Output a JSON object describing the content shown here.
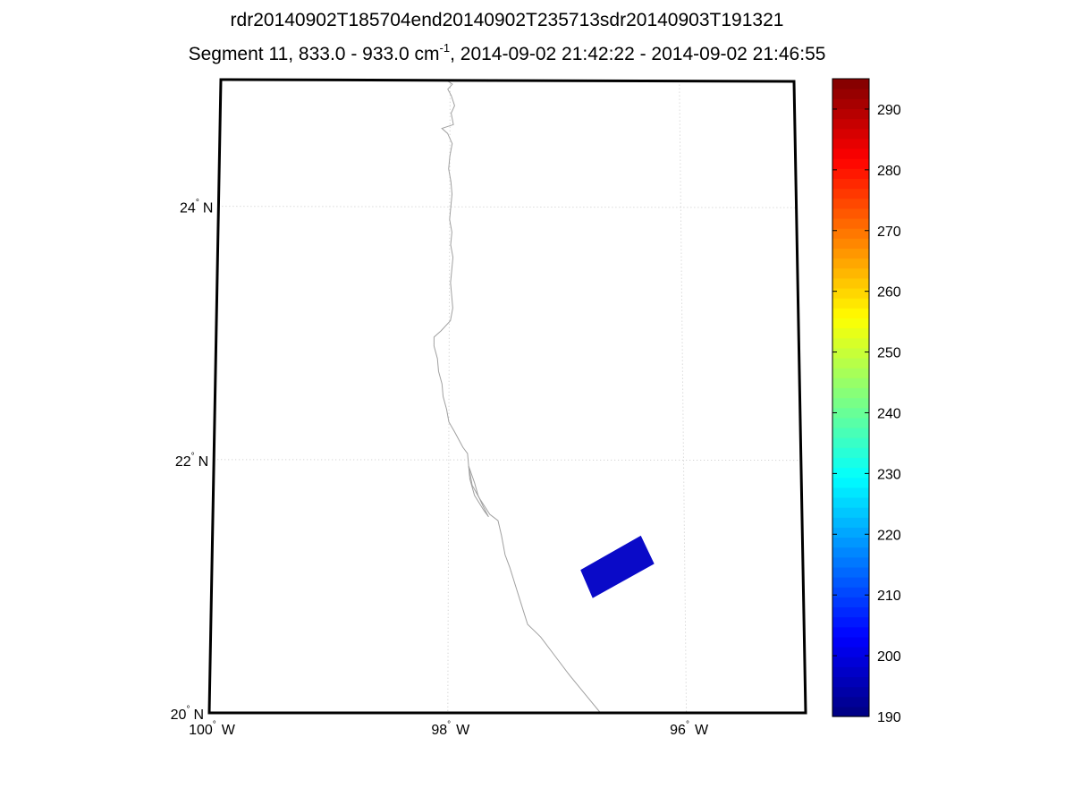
{
  "title": {
    "line1": "rdr20140902T185704end20140902T235713sdr20140903T191321",
    "line2_prefix": "Segment 11, 833.0 - 933.0 cm",
    "line2_superscript": "-1",
    "line2_suffix": ", 2014-09-02 21:42:22 - 2014-09-02 21:46:55"
  },
  "map": {
    "lat_range": [
      20,
      25
    ],
    "lon_range": [
      -100,
      -95
    ],
    "grid": true,
    "lat_ticks": [
      {
        "value": 24,
        "deg": "24",
        "hemi": "N"
      },
      {
        "value": 22,
        "deg": "22",
        "hemi": "N"
      },
      {
        "value": 20,
        "deg": "20",
        "hemi": "N"
      }
    ],
    "lon_ticks": [
      {
        "value": -100,
        "deg": "100",
        "hemi": "W"
      },
      {
        "value": -98,
        "deg": "98",
        "hemi": "W"
      },
      {
        "value": -96,
        "deg": "96",
        "hemi": "W"
      }
    ],
    "coastline_color": "#a0a0a0",
    "grid_color": "#c8c8c8",
    "swath": {
      "color": "#0a0ac8",
      "corners_lonlat": [
        [
          -96.88,
          21.13
        ],
        [
          -96.37,
          21.4
        ],
        [
          -96.26,
          21.18
        ],
        [
          -96.78,
          20.91
        ]
      ],
      "value_approx": 193
    }
  },
  "colorbar": {
    "min": 190,
    "max": 295,
    "colormap": "jet",
    "ticks": [
      "190",
      "200",
      "210",
      "220",
      "230",
      "240",
      "250",
      "260",
      "270",
      "280",
      "290"
    ]
  }
}
